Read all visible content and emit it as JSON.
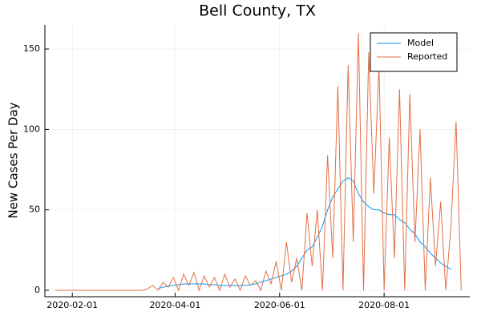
{
  "chart_data": {
    "type": "line",
    "title": "Bell County, TX",
    "y_label": "New Cases Per Day",
    "x": [
      "2020-01-22",
      "2020-01-25",
      "2020-01-28",
      "2020-01-31",
      "2020-02-03",
      "2020-02-06",
      "2020-02-09",
      "2020-02-12",
      "2020-02-15",
      "2020-02-18",
      "2020-02-21",
      "2020-02-24",
      "2020-02-27",
      "2020-03-01",
      "2020-03-04",
      "2020-03-07",
      "2020-03-10",
      "2020-03-13",
      "2020-03-16",
      "2020-03-19",
      "2020-03-22",
      "2020-03-25",
      "2020-03-28",
      "2020-03-31",
      "2020-04-03",
      "2020-04-06",
      "2020-04-09",
      "2020-04-12",
      "2020-04-15",
      "2020-04-18",
      "2020-04-21",
      "2020-04-24",
      "2020-04-27",
      "2020-04-30",
      "2020-05-03",
      "2020-05-06",
      "2020-05-09",
      "2020-05-12",
      "2020-05-15",
      "2020-05-18",
      "2020-05-21",
      "2020-05-24",
      "2020-05-27",
      "2020-05-30",
      "2020-06-02",
      "2020-06-05",
      "2020-06-08",
      "2020-06-11",
      "2020-06-14",
      "2020-06-17",
      "2020-06-20",
      "2020-06-23",
      "2020-06-26",
      "2020-06-29",
      "2020-07-02",
      "2020-07-05",
      "2020-07-08",
      "2020-07-11",
      "2020-07-14",
      "2020-07-17",
      "2020-07-20",
      "2020-07-23",
      "2020-07-26",
      "2020-07-29",
      "2020-08-01",
      "2020-08-04",
      "2020-08-07",
      "2020-08-10",
      "2020-08-13",
      "2020-08-16",
      "2020-08-19",
      "2020-08-22",
      "2020-08-25",
      "2020-08-28",
      "2020-08-31",
      "2020-09-03",
      "2020-09-06",
      "2020-09-09",
      "2020-09-12",
      "2020-09-15"
    ],
    "series": [
      {
        "name": "Model",
        "color": "#009af9",
        "values": [
          null,
          null,
          null,
          null,
          null,
          null,
          null,
          null,
          null,
          null,
          null,
          null,
          null,
          null,
          null,
          null,
          null,
          null,
          null,
          null,
          1,
          2,
          2.5,
          3,
          3.5,
          4,
          4,
          4,
          4,
          4,
          3.5,
          3.5,
          3,
          3,
          3,
          3,
          3,
          3,
          3.5,
          4,
          5,
          6,
          7,
          8,
          9,
          10,
          12,
          15,
          20,
          25,
          27,
          33,
          40,
          50,
          58,
          63,
          68,
          70,
          68,
          60,
          55,
          52,
          50,
          50,
          48,
          47,
          47,
          44,
          42,
          38,
          35,
          30,
          27,
          23,
          20,
          17,
          15,
          13,
          null,
          null
        ]
      },
      {
        "name": "Reported",
        "color": "#e26f46",
        "values": [
          0,
          0,
          0,
          0,
          0,
          0,
          0,
          0,
          0,
          0,
          0,
          0,
          0,
          0,
          0,
          0,
          0,
          0,
          1,
          3,
          0,
          5,
          2,
          8,
          0,
          10,
          3,
          11,
          0,
          9,
          2,
          8,
          0,
          10,
          2,
          7,
          0,
          9,
          3,
          6,
          0,
          12,
          4,
          18,
          0,
          30,
          5,
          20,
          0,
          48,
          15,
          50,
          0,
          84,
          20,
          127,
          0,
          140,
          30,
          160,
          0,
          148,
          60,
          140,
          0,
          95,
          20,
          125,
          0,
          122,
          30,
          100,
          0,
          70,
          15,
          55,
          0,
          40,
          105,
          0
        ]
      }
    ],
    "xlim": [
      "2020-01-16",
      "2020-09-20"
    ],
    "xticks": [
      "2020-02-01",
      "2020-04-01",
      "2020-06-01",
      "2020-08-01"
    ],
    "ylim": [
      -4,
      165
    ],
    "yticks": [
      0,
      50,
      100,
      150
    ],
    "grid": true,
    "legend": "top-right"
  }
}
